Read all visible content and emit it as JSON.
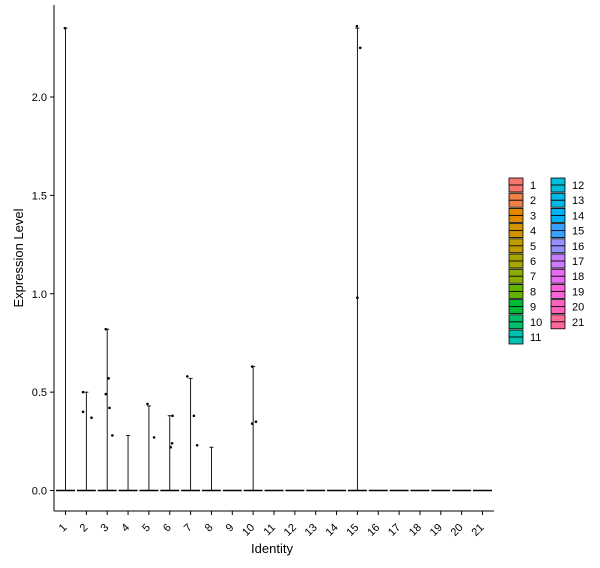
{
  "chart_data": {
    "type": "violin",
    "xlabel": "Identity",
    "ylabel": "Expression Level",
    "categories": [
      "1",
      "2",
      "3",
      "4",
      "5",
      "6",
      "7",
      "8",
      "9",
      "10",
      "11",
      "12",
      "13",
      "14",
      "15",
      "16",
      "17",
      "18",
      "19",
      "20",
      "21"
    ],
    "ylim": [
      -0.1,
      2.45
    ],
    "yticks": [
      0.0,
      0.5,
      1.0,
      1.5,
      2.0
    ],
    "ytick_labels": [
      "0.0",
      "0.5",
      "1.0",
      "1.5",
      "2.0"
    ],
    "grid": false,
    "legend_position": "right",
    "max_values": [
      2.35,
      0.5,
      0.82,
      0.28,
      0.43,
      0.38,
      0.57,
      0.22,
      0.0,
      0.63,
      0.0,
      0.0,
      0.0,
      0.0,
      2.35,
      0.0,
      0.0,
      0.0,
      0.0,
      0.0,
      0.0
    ],
    "points": [
      {
        "group": "1",
        "x": -0.05,
        "y": 2.35
      },
      {
        "group": "2",
        "x": -0.35,
        "y": 0.5
      },
      {
        "group": "2",
        "x": -0.35,
        "y": 0.4
      },
      {
        "group": "2",
        "x": 0.55,
        "y": 0.37
      },
      {
        "group": "3",
        "x": -0.15,
        "y": 0.82
      },
      {
        "group": "3",
        "x": 0.15,
        "y": 0.57
      },
      {
        "group": "3",
        "x": -0.15,
        "y": 0.49
      },
      {
        "group": "3",
        "x": 0.25,
        "y": 0.42
      },
      {
        "group": "3",
        "x": 0.55,
        "y": 0.28
      },
      {
        "group": "5",
        "x": -0.15,
        "y": 0.44
      },
      {
        "group": "5",
        "x": 0.55,
        "y": 0.27
      },
      {
        "group": "6",
        "x": 0.3,
        "y": 0.38
      },
      {
        "group": "6",
        "x": 0.25,
        "y": 0.24
      },
      {
        "group": "6",
        "x": 0.1,
        "y": 0.22
      },
      {
        "group": "7",
        "x": -0.35,
        "y": 0.58
      },
      {
        "group": "7",
        "x": 0.35,
        "y": 0.38
      },
      {
        "group": "7",
        "x": 0.7,
        "y": 0.23
      },
      {
        "group": "10",
        "x": -0.1,
        "y": 0.63
      },
      {
        "group": "10",
        "x": -0.1,
        "y": 0.34
      },
      {
        "group": "10",
        "x": 0.3,
        "y": 0.35
      },
      {
        "group": "15",
        "x": -0.05,
        "y": 2.36
      },
      {
        "group": "15",
        "x": 0.3,
        "y": 2.25
      },
      {
        "group": "15",
        "x": 0.0,
        "y": 0.98
      }
    ],
    "legend": {
      "entries": [
        {
          "label": "1",
          "color": "#F8766D"
        },
        {
          "label": "2",
          "color": "#EF7F49"
        },
        {
          "label": "3",
          "color": "#E38900"
        },
        {
          "label": "4",
          "color": "#D39200"
        },
        {
          "label": "5",
          "color": "#C09B00"
        },
        {
          "label": "6",
          "color": "#A8A400"
        },
        {
          "label": "7",
          "color": "#8CAB00"
        },
        {
          "label": "8",
          "color": "#64B200"
        },
        {
          "label": "9",
          "color": "#00BA38"
        },
        {
          "label": "10",
          "color": "#00BE6C"
        },
        {
          "label": "11",
          "color": "#00C0AF"
        },
        {
          "label": "12",
          "color": "#00BCD8"
        },
        {
          "label": "13",
          "color": "#00B8E7"
        },
        {
          "label": "14",
          "color": "#00B0F6"
        },
        {
          "label": "15",
          "color": "#35A2FF"
        },
        {
          "label": "16",
          "color": "#9590FF"
        },
        {
          "label": "17",
          "color": "#C77CFF"
        },
        {
          "label": "18",
          "color": "#E76BF3"
        },
        {
          "label": "19",
          "color": "#FA62DB"
        },
        {
          "label": "20",
          "color": "#FF62BC"
        },
        {
          "label": "21",
          "color": "#FF6A98"
        }
      ]
    }
  }
}
